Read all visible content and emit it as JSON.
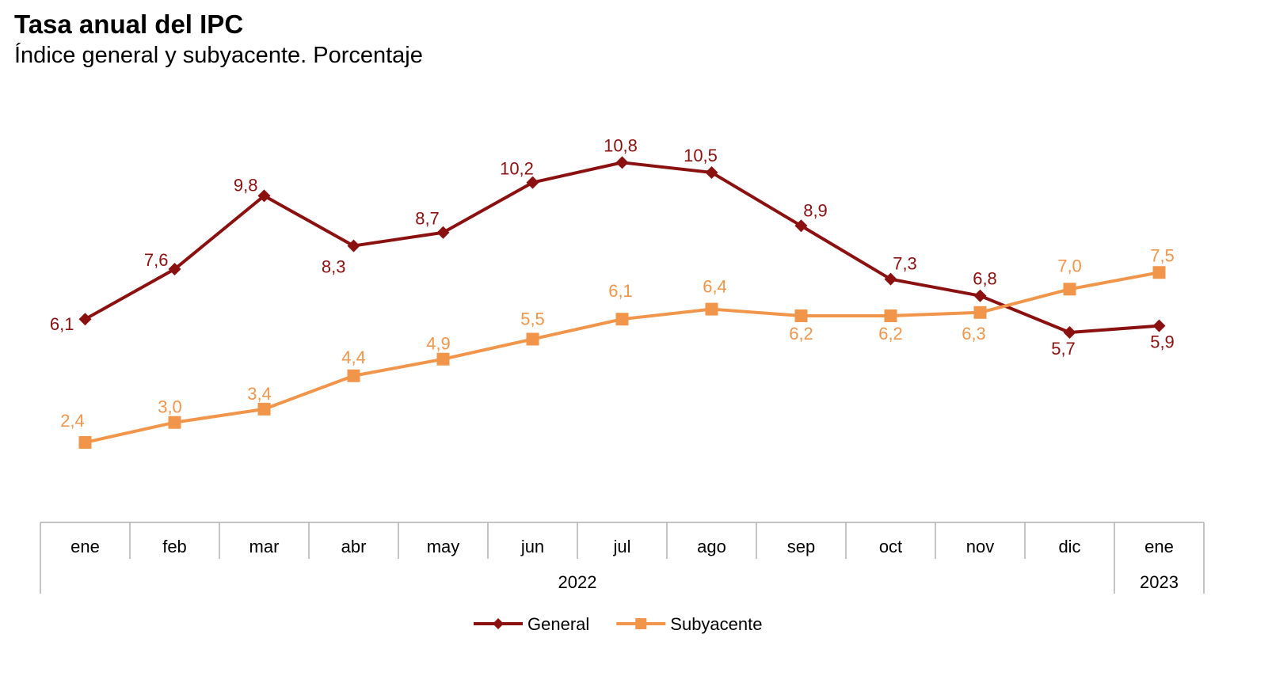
{
  "title": "Tasa anual del IPC",
  "subtitle": "Índice general y subyacente. Porcentaje",
  "chart_data": {
    "type": "line",
    "title": "Tasa anual del IPC",
    "subtitle": "Índice general y subyacente. Porcentaje",
    "categories": [
      "ene",
      "feb",
      "mar",
      "abr",
      "may",
      "jun",
      "jul",
      "ago",
      "sep",
      "oct",
      "nov",
      "dic",
      "ene"
    ],
    "year_groups": [
      {
        "label": "2022",
        "count": 12
      },
      {
        "label": "2023",
        "count": 1
      }
    ],
    "ylim": [
      0,
      12
    ],
    "grid": false,
    "legend_position": "bottom",
    "series": [
      {
        "name": "General",
        "color": "#8B1010",
        "marker": "diamond",
        "values": [
          6.1,
          7.6,
          9.8,
          8.3,
          8.7,
          10.2,
          10.8,
          10.5,
          8.9,
          7.3,
          6.8,
          5.7,
          5.9
        ],
        "labels": [
          "6,1",
          "7,6",
          "9,8",
          "8,3",
          "8,7",
          "10,2",
          "10,8",
          "10,5",
          "8,9",
          "7,3",
          "6,8",
          "5,7",
          "5,9"
        ]
      },
      {
        "name": "Subyacente",
        "color": "#F0954A",
        "marker": "square",
        "values": [
          2.4,
          3.0,
          3.4,
          4.4,
          4.9,
          5.5,
          6.1,
          6.4,
          6.2,
          6.2,
          6.3,
          7.0,
          7.5
        ],
        "labels": [
          "2,4",
          "3,0",
          "3,4",
          "4,4",
          "4,9",
          "5,5",
          "6,1",
          "6,4",
          "6,2",
          "6,2",
          "6,3",
          "7,0",
          "7,5"
        ]
      }
    ]
  }
}
